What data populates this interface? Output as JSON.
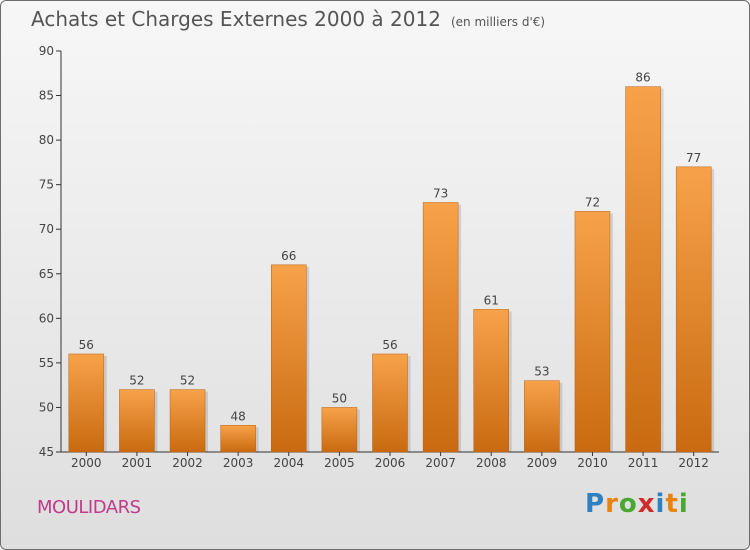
{
  "header": {
    "title": "Achats et Charges Externes 2000 à 2012",
    "unit": "(en milliers d'€)"
  },
  "footer": {
    "commune": "MOULIDARS",
    "logo_text": "Proxiti"
  },
  "colors": {
    "bar_top": "#f7a24a",
    "bar_bottom": "#c96a10",
    "axis": "#333333",
    "text": "#444444"
  },
  "chart_data": {
    "type": "bar",
    "categories": [
      "2000",
      "2001",
      "2002",
      "2003",
      "2004",
      "2005",
      "2006",
      "2007",
      "2008",
      "2009",
      "2010",
      "2011",
      "2012"
    ],
    "values": [
      56,
      52,
      52,
      48,
      66,
      50,
      56,
      73,
      61,
      53,
      72,
      86,
      77
    ],
    "ylim": [
      45,
      90
    ],
    "yticks": [
      45,
      50,
      55,
      60,
      65,
      70,
      75,
      80,
      85,
      90
    ],
    "data_labels": true,
    "grid": false
  }
}
